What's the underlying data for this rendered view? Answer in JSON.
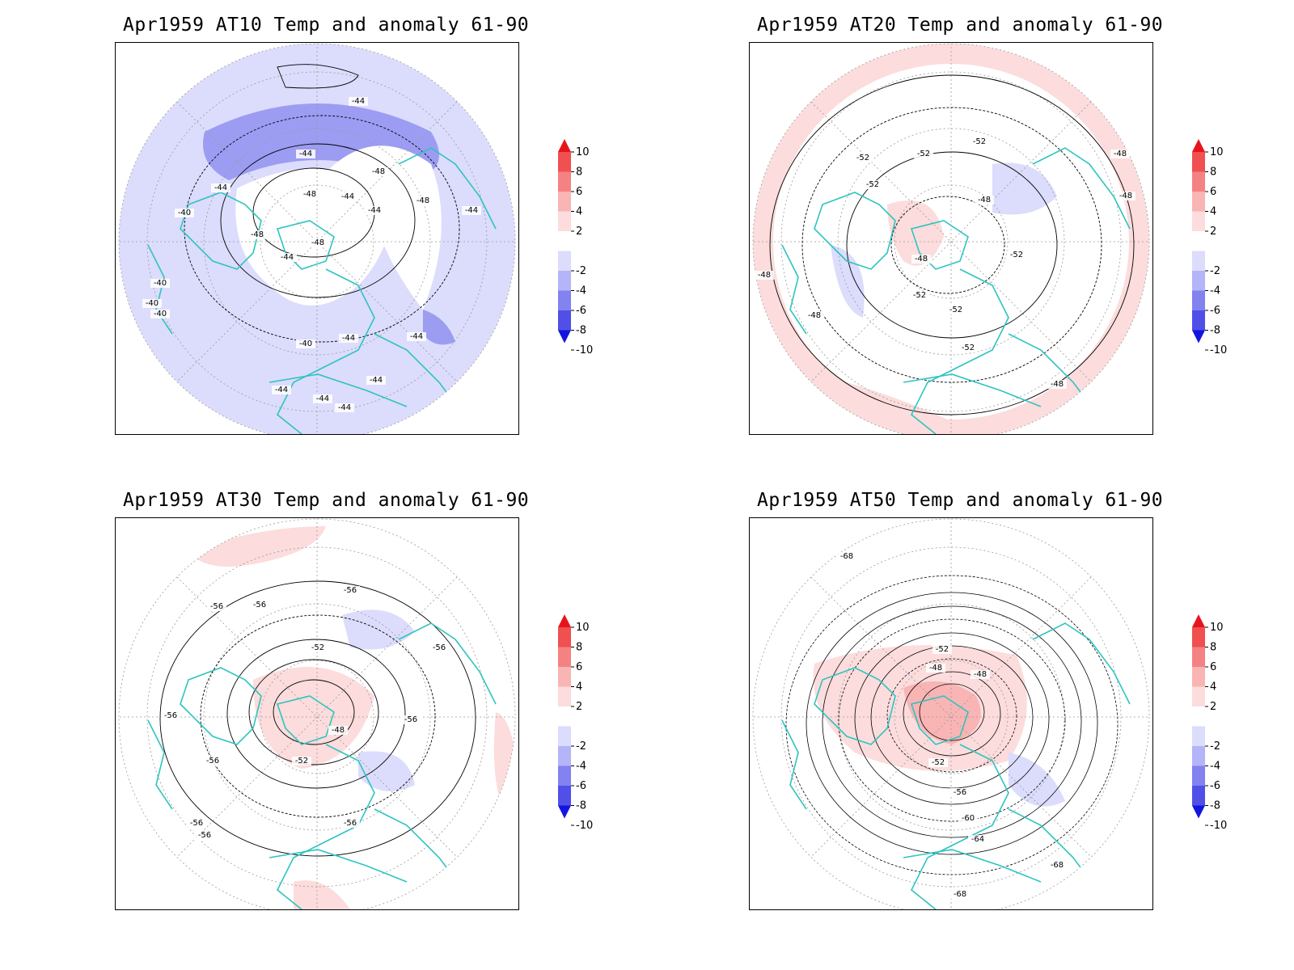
{
  "panels": [
    {
      "id": "at10",
      "title": "Apr1959 AT10 Temp and anomaly 61-90",
      "contour_labels": [
        "-44",
        "-44",
        "-44",
        "-48",
        "-48",
        "-44",
        "-44",
        "-40",
        "-48",
        "-48",
        "-48",
        "-44",
        "-40",
        "-40",
        "-40",
        "-44",
        "-40",
        "-44",
        "-44",
        "-44",
        "-44",
        "-44",
        "-44"
      ]
    },
    {
      "id": "at20",
      "title": "Apr1959 AT20 Temp and anomaly 61-90",
      "contour_labels": [
        "-52",
        "-52",
        "-52",
        "-48",
        "-52",
        "-48",
        "-48",
        "-48",
        "-52",
        "-52",
        "-52",
        "-52",
        "-48",
        "-48",
        "-48"
      ]
    },
    {
      "id": "at30",
      "title": "Apr1959 AT30 Temp and anomaly 61-90",
      "contour_labels": [
        "-56",
        "-56",
        "-56",
        "-52",
        "-56",
        "-56",
        "-48",
        "-56",
        "-52",
        "-56",
        "-56",
        "-56",
        "-56"
      ]
    },
    {
      "id": "at50",
      "title": "Apr1959 AT50 Temp and anomaly 61-90",
      "contour_labels": [
        "-68",
        "-52",
        "-48",
        "-48",
        "-52",
        "-56",
        "-60",
        "-64",
        "-68",
        "-68"
      ]
    }
  ],
  "colorbar": {
    "labels": [
      "10",
      "8",
      "6",
      "4",
      "2",
      "-2",
      "-4",
      "-6",
      "-8",
      "-10"
    ],
    "colors": [
      "#e8141c",
      "#f05050",
      "#f58282",
      "#f9b4b4",
      "#fcdcdc",
      "#ffffff",
      "#dcdcfc",
      "#b4b4f8",
      "#8282f0",
      "#5050e8",
      "#1414e0"
    ]
  },
  "colors": {
    "coastline": "#2ec4bf",
    "contour": "#000000",
    "grid": "#9a9a9a"
  }
}
